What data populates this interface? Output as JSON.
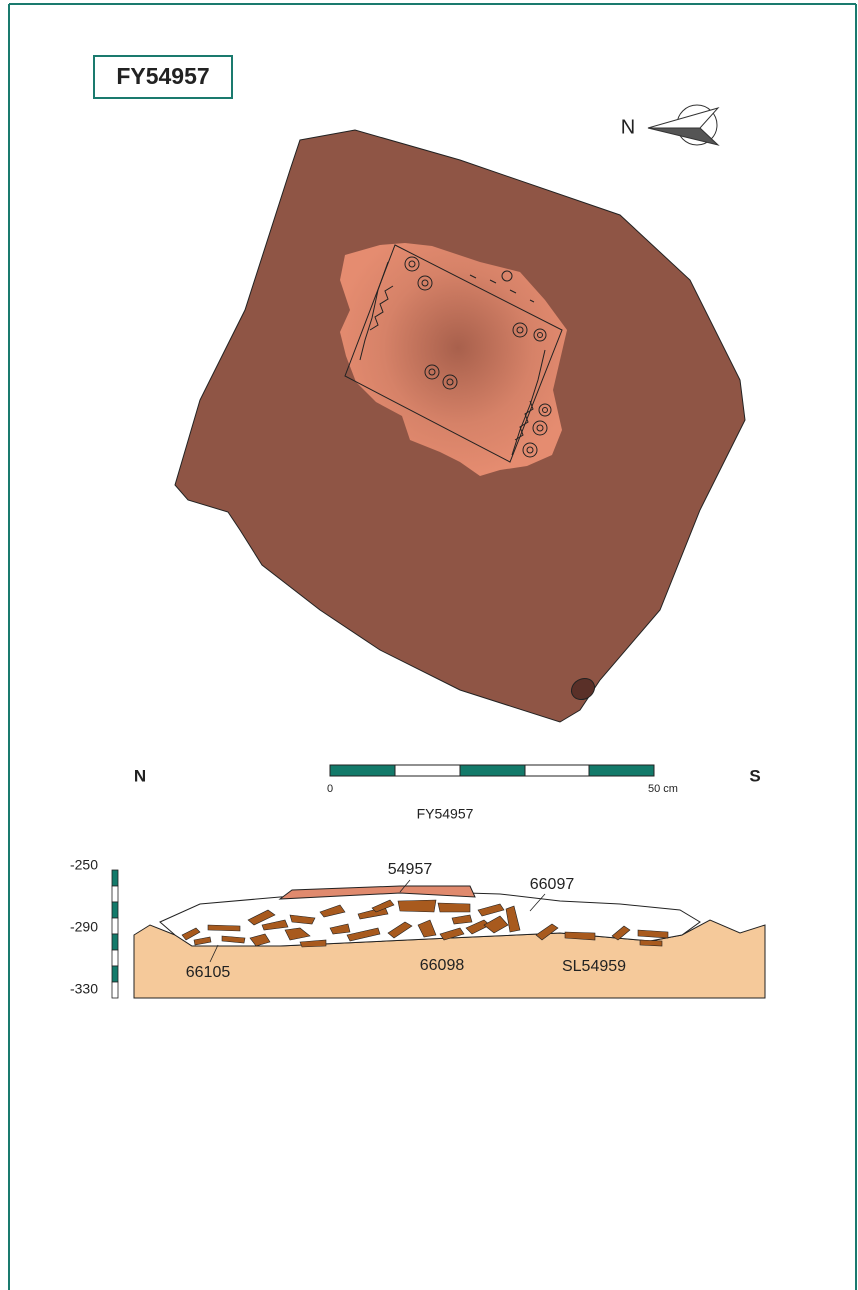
{
  "header": {
    "title": "FY54957"
  },
  "plan": {
    "north_label": "N",
    "scale_bar": {
      "start": "0",
      "end": "50 cm"
    }
  },
  "section": {
    "left_label": "N",
    "right_label": "S",
    "title": "FY54957",
    "depth_labels": [
      "-250",
      "-290",
      "-330"
    ],
    "layer_labels": [
      "54957",
      "66097",
      "66105",
      "66098",
      "SL54959"
    ]
  }
}
